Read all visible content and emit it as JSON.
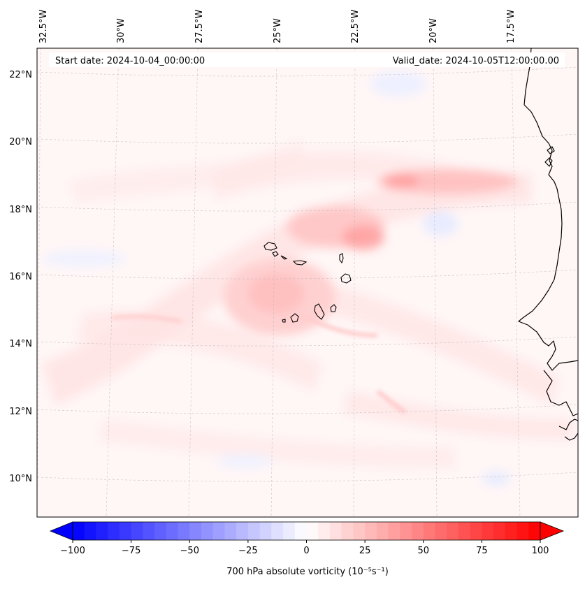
{
  "map": {
    "start_date_label": "Start date: 2024-10-04_00:00:00",
    "valid_date_label": "Valid_date: 2024-10-05T12:00:00.00",
    "lon_labels": [
      "32.5°W",
      "30°W",
      "27.5°W",
      "25°W",
      "22.5°W",
      "20°W",
      "17.5°W"
    ],
    "lat_labels": [
      "22°N",
      "20°N",
      "18°N",
      "16°N",
      "14°N",
      "12°N",
      "10°N"
    ],
    "field": "700 hPa absolute vorticity",
    "colors": {
      "negative": "#0000ff",
      "neutral": "#ffffff",
      "positive": "#ff0000",
      "coast": "#000000"
    }
  },
  "colorbar": {
    "label": "700 hPa absolute vorticity (10⁻⁵s⁻¹)",
    "ticks": [
      "−100",
      "−75",
      "−50",
      "−25",
      "0",
      "25",
      "50",
      "75",
      "100"
    ],
    "tick_values": [
      -100,
      -75,
      -50,
      -25,
      0,
      25,
      50,
      75,
      100
    ],
    "min": -100,
    "max": 100,
    "step": 5,
    "extend": "both"
  }
}
